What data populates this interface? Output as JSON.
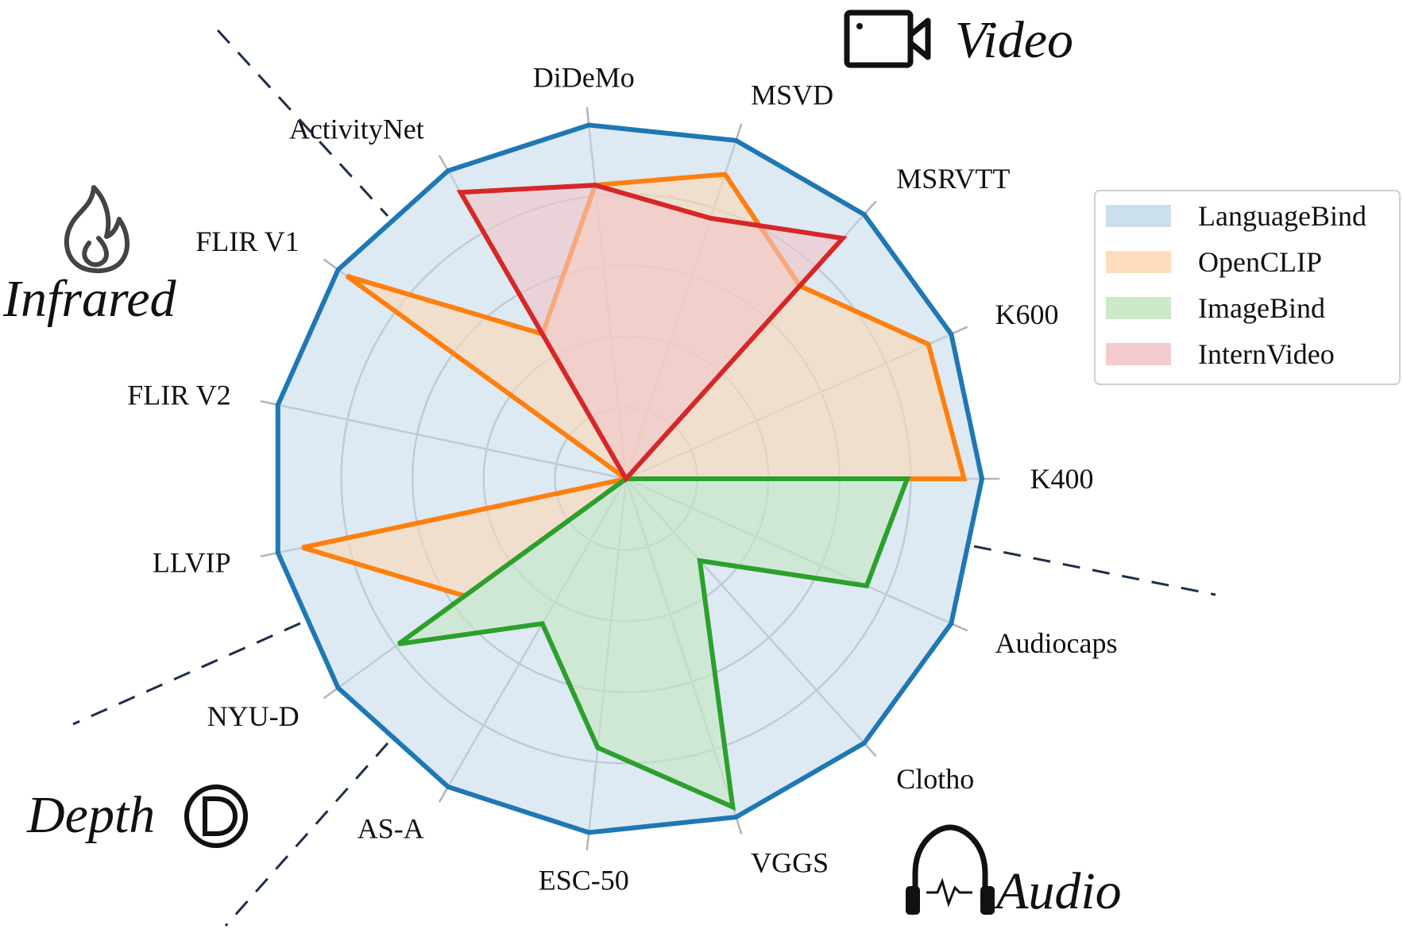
{
  "chart_data": {
    "type": "radar",
    "axes": [
      "K400",
      "K600",
      "MSRVTT",
      "MSVD",
      "DiDeMo",
      "ActivityNet",
      "FLIR V1",
      "FLIR V2",
      "LLVIP",
      "NYU-D",
      "AS-A",
      "ESC-50",
      "VGGS",
      "Clotho",
      "Audiocaps"
    ],
    "series": [
      {
        "name": "LanguageBind",
        "color": "#1f77b4",
        "fill": "#c6dbeb",
        "values": [
          1.0,
          1.0,
          1.0,
          1.0,
          1.0,
          1.0,
          1.0,
          1.0,
          1.0,
          1.0,
          1.0,
          1.0,
          1.0,
          1.0,
          1.0
        ]
      },
      {
        "name": "OpenCLIP",
        "color": "#ff7f0e",
        "fill": "#ffd8b4",
        "values": [
          0.95,
          0.93,
          0.73,
          0.9,
          0.83,
          0.47,
          0.97,
          null,
          0.93,
          0.56,
          null,
          null,
          null,
          null,
          null
        ]
      },
      {
        "name": "ImageBind",
        "color": "#2ca02c",
        "fill": "#c7e7c3",
        "values": [
          0.79,
          null,
          null,
          null,
          null,
          null,
          null,
          null,
          null,
          0.79,
          0.47,
          0.76,
          0.97,
          0.31,
          0.74
        ]
      },
      {
        "name": "InternVideo",
        "color": "#d62728",
        "fill": "#f2c4c8",
        "values": [
          null,
          null,
          0.91,
          0.77,
          0.83,
          0.93,
          null,
          null,
          null,
          null,
          null,
          null,
          null,
          null,
          null
        ]
      }
    ],
    "rlim": [
      0,
      1
    ],
    "grid": true,
    "legend_position": "top-right",
    "modalities": [
      "Video",
      "Infrared",
      "Depth",
      "Audio"
    ]
  },
  "icons": {
    "video": "video-camera-icon",
    "infrared": "flame-icon",
    "depth": "depth-d-icon",
    "audio": "headphones-icon"
  }
}
